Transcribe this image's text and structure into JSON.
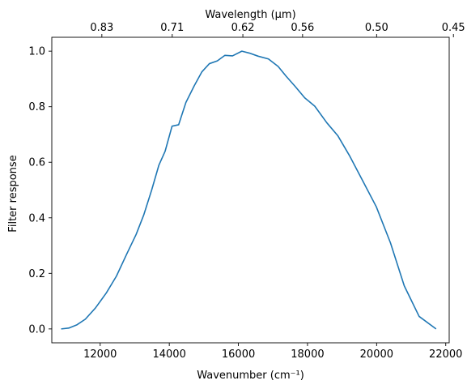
{
  "chart_data": {
    "type": "line",
    "title": "",
    "xlabel": "Wavenumber (cm⁻¹)",
    "ylabel": "Filter response",
    "top_xlabel": "Wavelength (μm)",
    "xlim": [
      10600,
      22100
    ],
    "ylim": [
      -0.05,
      1.05
    ],
    "grid": false,
    "legend": "none",
    "x_ticks": [
      12000,
      14000,
      16000,
      18000,
      20000,
      22000
    ],
    "x_tick_labels": [
      "12000",
      "14000",
      "16000",
      "18000",
      "20000",
      "22000"
    ],
    "y_ticks": [
      0.0,
      0.2,
      0.4,
      0.6,
      0.8,
      1.0
    ],
    "y_tick_labels": [
      "0.0",
      "0.2",
      "0.4",
      "0.6",
      "0.8",
      "1.0"
    ],
    "top_ticks": [
      0.83,
      0.71,
      0.62,
      0.56,
      0.5,
      0.45
    ],
    "top_tick_labels": [
      "0.83",
      "0.71",
      "0.62",
      "0.56",
      "0.50",
      "0.45"
    ],
    "series": [
      {
        "color": "#1f77b4",
        "x": [
          10870,
          11090,
          11330,
          11570,
          11860,
          12180,
          12470,
          12770,
          13040,
          13260,
          13490,
          13700,
          13880,
          14080,
          14270,
          14480,
          14720,
          14940,
          15160,
          15390,
          15610,
          15830,
          16100,
          16320,
          16570,
          16870,
          17150,
          17380,
          17650,
          17920,
          18210,
          18560,
          18880,
          19210,
          19590,
          19990,
          20400,
          20800,
          21230,
          21720
        ],
        "y": [
          0.0,
          0.003,
          0.015,
          0.035,
          0.075,
          0.13,
          0.19,
          0.27,
          0.34,
          0.41,
          0.5,
          0.59,
          0.64,
          0.73,
          0.735,
          0.815,
          0.875,
          0.925,
          0.955,
          0.965,
          0.985,
          0.983,
          1.0,
          0.993,
          0.982,
          0.972,
          0.945,
          0.91,
          0.872,
          0.832,
          0.802,
          0.742,
          0.695,
          0.625,
          0.535,
          0.44,
          0.31,
          0.155,
          0.045,
          0.0
        ]
      }
    ]
  }
}
